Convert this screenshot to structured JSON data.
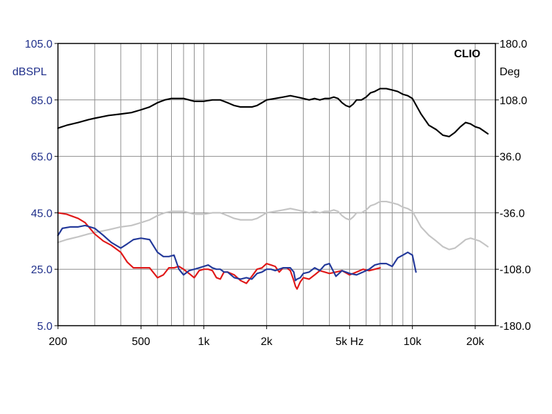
{
  "chart_data": {
    "type": "line",
    "brand": "CLIO",
    "left_axis": {
      "unit": "dBSPL",
      "range": [
        5,
        105
      ],
      "ticks": [
        "5.0",
        "25.0",
        "45.0",
        "65.0",
        "85.0",
        "105.0"
      ]
    },
    "right_axis": {
      "unit": "Deg",
      "range": [
        -180,
        180
      ],
      "ticks": [
        "-180.0",
        "-108.0",
        "-36.0",
        "36.0",
        "108.0",
        "180.0"
      ]
    },
    "x_axis": {
      "scale": "log",
      "range": [
        200,
        25000
      ],
      "tick_labels": [
        {
          "value": 200,
          "label": "200"
        },
        {
          "value": 500,
          "label": "500"
        },
        {
          "value": 1000,
          "label": "1k"
        },
        {
          "value": 2000,
          "label": "2k"
        },
        {
          "value": 5000,
          "label": "5k Hz"
        },
        {
          "value": 10000,
          "label": "10k"
        },
        {
          "value": 20000,
          "label": "20k"
        }
      ],
      "gridlines": [
        200,
        300,
        400,
        500,
        600,
        700,
        800,
        900,
        1000,
        2000,
        3000,
        4000,
        5000,
        6000,
        7000,
        8000,
        9000,
        10000,
        20000
      ]
    },
    "grid": true,
    "colors": {
      "black": "#000000",
      "gray": "#c4c4c4",
      "red": "#e01818",
      "blue": "#23399a",
      "axis_text": "#1f2f8a"
    },
    "series": [
      {
        "color": "#000000",
        "x": [
          200,
          220,
          250,
          280,
          300,
          350,
          400,
          450,
          500,
          550,
          600,
          650,
          700,
          750,
          800,
          850,
          900,
          950,
          1000,
          1100,
          1200,
          1300,
          1400,
          1500,
          1600,
          1700,
          1800,
          1900,
          2000,
          2200,
          2400,
          2600,
          2800,
          3000,
          3200,
          3400,
          3600,
          3800,
          4000,
          4200,
          4400,
          4600,
          4800,
          5000,
          5200,
          5400,
          5700,
          6000,
          6300,
          6600,
          7000,
          7500,
          8000,
          8500,
          9000,
          9500,
          10000,
          11000,
          12000,
          13000,
          14000,
          15000,
          16000,
          17000,
          18000,
          19000,
          20000,
          21000,
          22000,
          23000
        ],
        "y": [
          75,
          76,
          77,
          78,
          78.5,
          79.5,
          80,
          80.5,
          81.5,
          82.5,
          84,
          85,
          85.5,
          85.5,
          85.5,
          85,
          84.5,
          84.5,
          84.5,
          85,
          85,
          84,
          83,
          82.5,
          82.5,
          82.5,
          83,
          84,
          85,
          85.5,
          86,
          86.5,
          86,
          85.5,
          85,
          85.5,
          85,
          85.5,
          85.5,
          86,
          85.5,
          84,
          83,
          82.5,
          83.5,
          85,
          85,
          86,
          87.5,
          88,
          89,
          89,
          88.5,
          88,
          87,
          86.5,
          85.5,
          80,
          76,
          74.5,
          72.5,
          72,
          73.5,
          75.5,
          77,
          76.5,
          75.5,
          75,
          74,
          73
        ]
      },
      {
        "color": "#c4c4c4",
        "x": [
          200,
          220,
          250,
          280,
          300,
          350,
          400,
          450,
          500,
          550,
          600,
          650,
          700,
          750,
          800,
          850,
          900,
          950,
          1000,
          1100,
          1200,
          1300,
          1400,
          1500,
          1600,
          1700,
          1800,
          1900,
          2000,
          2200,
          2400,
          2600,
          2800,
          3000,
          3200,
          3400,
          3600,
          3800,
          4000,
          4200,
          4400,
          4600,
          4800,
          5000,
          5200,
          5400,
          5700,
          6000,
          6300,
          6600,
          7000,
          7500,
          8000,
          8500,
          9000,
          9500,
          10000,
          11000,
          12000,
          13000,
          14000,
          15000,
          16000,
          17000,
          18000,
          19000,
          20000,
          21000,
          22000,
          23000
        ],
        "y": [
          34.5,
          35.5,
          36.5,
          37.5,
          38,
          39,
          40,
          40.5,
          41.5,
          42.5,
          44,
          45,
          45.5,
          45.5,
          45.5,
          45,
          44.5,
          44.5,
          44.5,
          45,
          45,
          44,
          43,
          42.5,
          42.5,
          42.5,
          43,
          44,
          45,
          45.5,
          46,
          46.5,
          46,
          45.5,
          45,
          45.5,
          45,
          45.5,
          45.5,
          46,
          45.5,
          44,
          43,
          42.5,
          43.5,
          45,
          45,
          46,
          47.5,
          48,
          49,
          49,
          48.5,
          48,
          47,
          46.5,
          45.5,
          40,
          37,
          35,
          33,
          32,
          32.5,
          34,
          35.5,
          36,
          35.5,
          35,
          34,
          33
        ]
      },
      {
        "color": "#e01818",
        "x": [
          200,
          220,
          250,
          270,
          300,
          330,
          360,
          400,
          430,
          460,
          500,
          550,
          600,
          640,
          680,
          720,
          760,
          800,
          850,
          900,
          950,
          1000,
          1050,
          1100,
          1150,
          1200,
          1250,
          1300,
          1400,
          1500,
          1600,
          1700,
          1800,
          1900,
          2000,
          2100,
          2200,
          2300,
          2400,
          2500,
          2600,
          2700,
          2750,
          2800,
          2900,
          3000,
          3200,
          3400,
          3600,
          3800,
          4000,
          4300,
          4600,
          5000,
          5400,
          5800,
          6200,
          6600,
          7000
        ],
        "y": [
          45,
          44.5,
          43,
          41.5,
          37.5,
          35,
          33.5,
          31,
          27.5,
          25.5,
          25.5,
          25.5,
          22,
          23,
          25.5,
          25.5,
          26,
          25,
          23.5,
          22,
          24.5,
          25,
          25,
          24.5,
          22,
          21.5,
          24,
          24,
          23,
          21,
          20,
          22.5,
          25,
          25.5,
          27,
          26.5,
          26,
          24,
          25.5,
          25.5,
          24.5,
          21,
          19,
          18,
          20.5,
          22,
          21.5,
          23,
          24.5,
          24,
          23.5,
          24,
          24.5,
          23,
          24,
          25,
          24.5,
          25,
          25.5
        ]
      },
      {
        "color": "#23399a",
        "x": [
          200,
          210,
          230,
          250,
          270,
          300,
          330,
          360,
          400,
          430,
          460,
          500,
          550,
          600,
          640,
          680,
          720,
          760,
          800,
          850,
          900,
          950,
          1000,
          1050,
          1100,
          1150,
          1200,
          1250,
          1300,
          1400,
          1500,
          1600,
          1700,
          1800,
          1900,
          2000,
          2100,
          2200,
          2300,
          2400,
          2500,
          2600,
          2700,
          2750,
          2800,
          2900,
          3000,
          3200,
          3400,
          3600,
          3800,
          4000,
          4300,
          4600,
          5000,
          5400,
          5800,
          6200,
          6600,
          7000,
          7500,
          8000,
          8500,
          9000,
          9500,
          10000,
          10400
        ],
        "y": [
          37,
          39.5,
          40,
          40,
          40.5,
          39.5,
          37,
          34.5,
          32.5,
          34,
          35.5,
          36,
          35.5,
          31,
          29.5,
          29.5,
          30,
          25,
          23,
          24.5,
          25,
          25.5,
          26,
          26.5,
          25.5,
          25,
          25,
          24,
          24,
          22,
          21.5,
          22,
          21.5,
          23.5,
          24,
          25,
          25,
          24.5,
          25,
          25.5,
          25.5,
          25.5,
          24,
          21,
          21.5,
          22,
          23.5,
          24,
          25.5,
          24.5,
          26.5,
          27,
          22.5,
          24.5,
          23.5,
          23,
          24,
          25,
          26.5,
          27,
          27,
          26,
          29,
          30,
          31,
          30,
          24
        ]
      }
    ]
  }
}
